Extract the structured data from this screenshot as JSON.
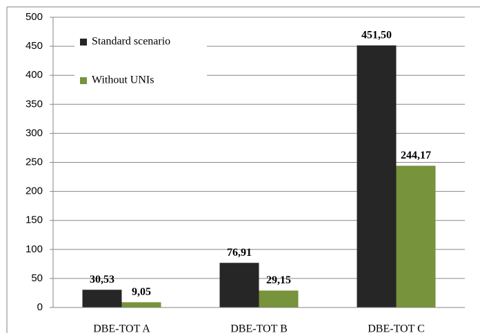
{
  "chart_data": {
    "type": "bar",
    "categories": [
      "DBE-TOT A",
      "DBE-TOT B",
      "DBE-TOT C"
    ],
    "series": [
      {
        "name": "Standard scenario",
        "color": "#262626",
        "values": [
          30.53,
          76.91,
          451.5
        ],
        "value_labels": [
          "30,53",
          "76,91",
          "451,50"
        ]
      },
      {
        "name": "Without UNIs",
        "color": "#77933c",
        "values": [
          9.05,
          29.15,
          244.17
        ],
        "value_labels": [
          "9,05",
          "29,15",
          "244,17"
        ]
      }
    ],
    "ylim": [
      0,
      500
    ],
    "yticks": [
      0,
      50,
      100,
      150,
      200,
      250,
      300,
      350,
      400,
      450,
      500
    ],
    "grid": true,
    "legend": "upper-left"
  }
}
